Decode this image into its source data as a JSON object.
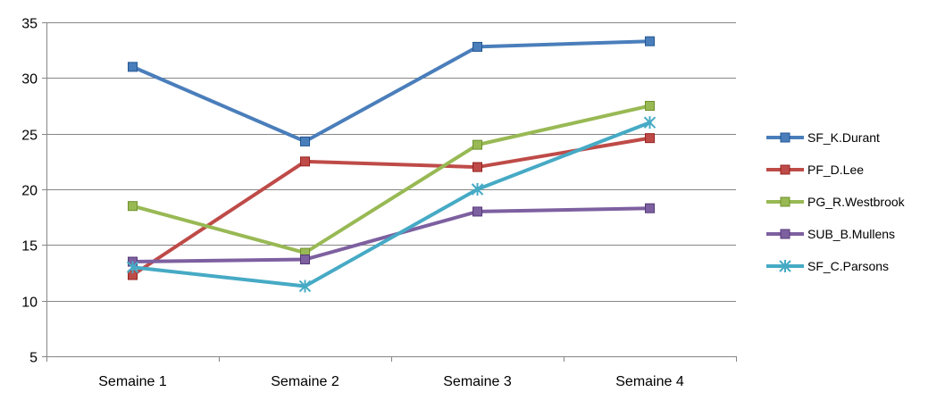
{
  "chart_data": {
    "type": "line",
    "title": "",
    "xlabel": "",
    "ylabel": "",
    "categories": [
      "Semaine 1",
      "Semaine 2",
      "Semaine 3",
      "Semaine 4"
    ],
    "ylim": [
      5,
      35
    ],
    "yticks": [
      5,
      10,
      15,
      20,
      25,
      30,
      35
    ],
    "grid": "horizontal",
    "legend_position": "right",
    "series": [
      {
        "name": "SF_K.Durant",
        "values": [
          31.0,
          24.3,
          32.8,
          33.3
        ],
        "color": "#4A7EBB",
        "marker": "square"
      },
      {
        "name": "PF_D.Lee",
        "values": [
          12.3,
          22.5,
          22.0,
          24.6
        ],
        "color": "#BE4B48",
        "marker": "square"
      },
      {
        "name": "PG_R.Westbrook",
        "values": [
          18.5,
          14.3,
          24.0,
          27.5
        ],
        "color": "#98B954",
        "marker": "square"
      },
      {
        "name": "SUB_B.Mullens",
        "values": [
          13.5,
          13.7,
          18.0,
          18.3
        ],
        "color": "#7D60A0",
        "marker": "square"
      },
      {
        "name": "SF_C.Parsons",
        "values": [
          13.0,
          11.3,
          20.0,
          26.0
        ],
        "color": "#46AAC5",
        "marker": "star"
      }
    ]
  }
}
